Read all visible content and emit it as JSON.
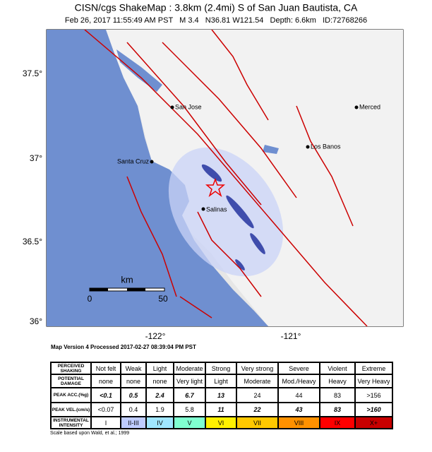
{
  "header": {
    "title": "CISN/cgs ShakeMap : 3.8km (2.4mi) S of San Juan Bautista, CA",
    "subtitle": "Feb 26, 2017 11:55:49 AM PST   M 3.4   N36.81 W121.54   Depth: 6.6km   ID:72768266"
  },
  "map": {
    "lat_labels": [
      "37.5°",
      "37°",
      "36.5°",
      "36°"
    ],
    "lon_labels": [
      "-122°",
      "-121°"
    ],
    "cities": [
      "San Jose",
      "Merced",
      "Los Banos",
      "Santa Cruz",
      "Salinas"
    ],
    "scale": {
      "unit": "km",
      "labels": [
        "0",
        "50"
      ]
    }
  },
  "footer": {
    "processed": "Map Version 4 Processed 2017-02-27 08:39:04 PM PST",
    "note": "Scale based upon Wald, et al.; 1999"
  },
  "table": {
    "rows": [
      [
        "PERCEIVED SHAKING",
        "Not felt",
        "Weak",
        "Light",
        "Moderate",
        "Strong",
        "Very strong",
        "Severe",
        "Violent",
        "Extreme"
      ],
      [
        "POTENTIAL DAMAGE",
        "none",
        "none",
        "none",
        "Very light",
        "Light",
        "Moderate",
        "Mod./Heavy",
        "Heavy",
        "Very Heavy"
      ],
      [
        "PEAK ACC.(%g)",
        "<0.1",
        "0.5",
        "2.4",
        "6.7",
        "13",
        "24",
        "44",
        "83",
        ">156"
      ],
      [
        "PEAK VEL.(cm/s)",
        "<0.07",
        "0.4",
        "1.9",
        "5.8",
        "11",
        "22",
        "43",
        "83",
        ">160"
      ],
      [
        "INSTRUMENTAL INTENSITY",
        "I",
        "II-III",
        "IV",
        "V",
        "VI",
        "VII",
        "VIII",
        "IX",
        "X+"
      ]
    ]
  }
}
